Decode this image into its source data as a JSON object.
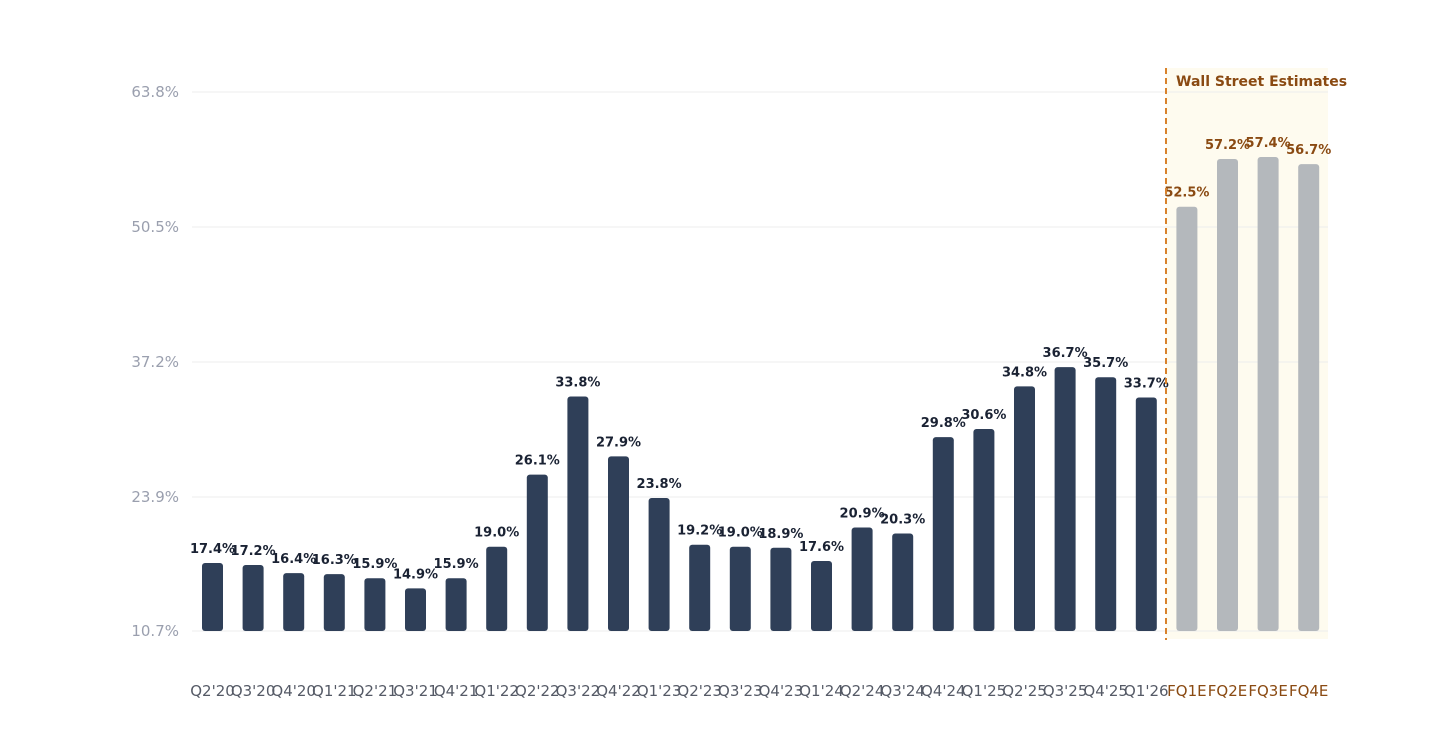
{
  "chart_data": {
    "type": "bar",
    "title": "",
    "xlabel": "",
    "ylabel": "",
    "ylim": [
      10.7,
      63.8
    ],
    "y_ticks": [
      "10.7%",
      "23.9%",
      "37.2%",
      "50.5%",
      "63.8%"
    ],
    "y_tick_values": [
      10.7,
      23.9,
      37.2,
      50.5,
      63.8
    ],
    "grid": true,
    "categories": [
      "Q2'20",
      "Q3'20",
      "Q4'20",
      "Q1'21",
      "Q2'21",
      "Q3'21",
      "Q4'21",
      "Q1'22",
      "Q2'22",
      "Q3'22",
      "Q4'22",
      "Q1'23",
      "Q2'23",
      "Q3'23",
      "Q4'23",
      "Q1'24",
      "Q2'24",
      "Q3'24",
      "Q4'24",
      "Q1'25",
      "Q2'25",
      "Q3'25",
      "Q4'25",
      "Q1'26",
      "FQ1E",
      "FQ2E",
      "FQ3E",
      "FQ4E"
    ],
    "values": [
      17.4,
      17.2,
      16.4,
      16.3,
      15.9,
      14.9,
      15.9,
      19.0,
      26.1,
      33.8,
      27.9,
      23.8,
      19.2,
      19.0,
      18.9,
      17.6,
      20.9,
      20.3,
      29.8,
      30.6,
      34.8,
      36.7,
      35.7,
      33.7,
      52.5,
      57.2,
      57.4,
      56.7
    ],
    "data_labels": [
      "17.4%",
      "17.2%",
      "16.4%",
      "16.3%",
      "15.9%",
      "14.9%",
      "15.9%",
      "19.0%",
      "26.1%",
      "33.8%",
      "27.9%",
      "23.8%",
      "19.2%",
      "19.0%",
      "18.9%",
      "17.6%",
      "20.9%",
      "20.3%",
      "29.8%",
      "30.6%",
      "34.8%",
      "36.7%",
      "35.7%",
      "33.7%",
      "52.5%",
      "57.2%",
      "57.4%",
      "56.7%"
    ],
    "actual_count": 24,
    "estimate_region_label": "Wall Street Estimates",
    "colors": {
      "actual": "#2f3f58",
      "estimate": "#b4b8bc",
      "estimate_text": "#8a4a12",
      "divider": "#d9822b",
      "estimate_bg": "#fefbef",
      "grid": "#ececec"
    }
  }
}
